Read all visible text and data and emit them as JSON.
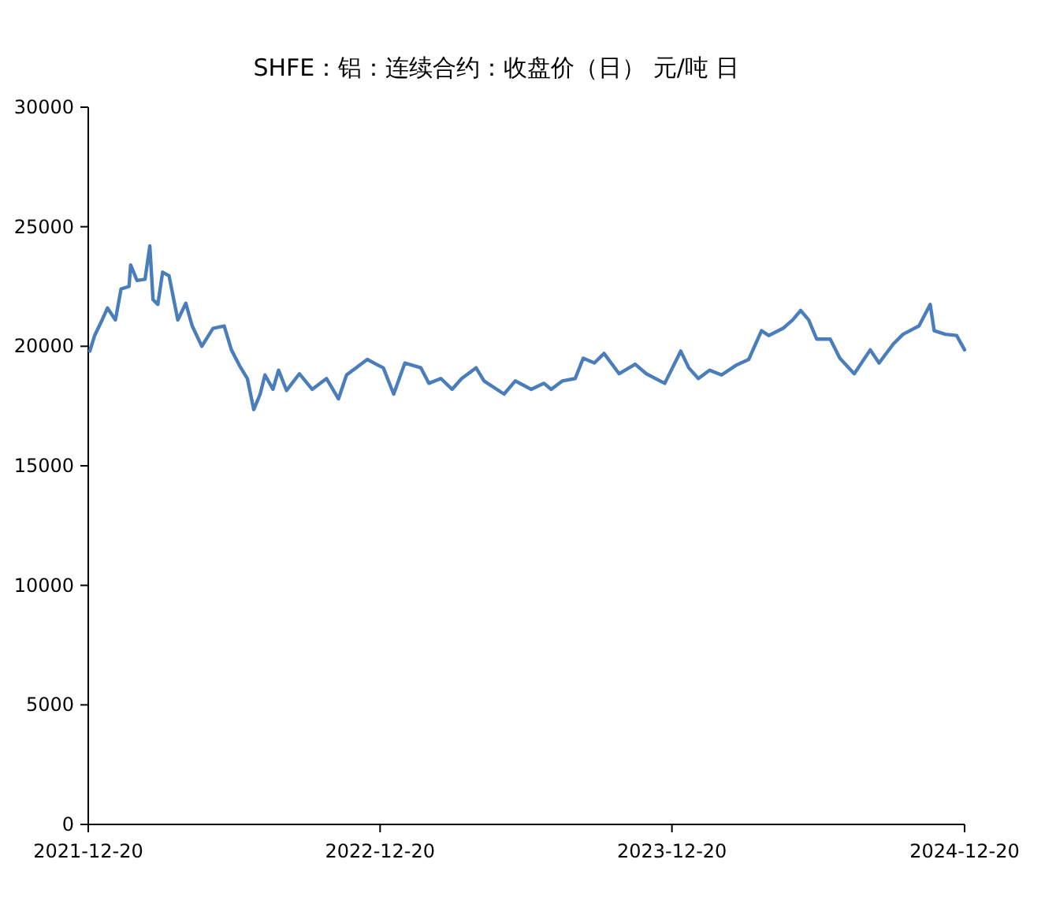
{
  "chart_data": {
    "type": "line",
    "title": "SHFE：铝：连续合约：收盘价（日）  元/吨 日",
    "xlim": [
      "2021-12-20",
      "2024-12-20"
    ],
    "xticks": [
      "2021-12-20",
      "2022-12-20",
      "2023-12-20",
      "2024-12-20"
    ],
    "ylim": [
      0,
      30000
    ],
    "yticks": [
      0,
      5000,
      10000,
      15000,
      20000,
      25000,
      30000
    ],
    "x": [
      "2021-12-22",
      "2021-12-28",
      "2022-01-07",
      "2022-01-13",
      "2022-01-23",
      "2022-01-30",
      "2022-02-09",
      "2022-02-11",
      "2022-02-19",
      "2022-03-01",
      "2022-03-07",
      "2022-03-11",
      "2022-03-17",
      "2022-03-23",
      "2022-03-31",
      "2022-04-11",
      "2022-04-21",
      "2022-04-29",
      "2022-05-11",
      "2022-05-25",
      "2022-06-08",
      "2022-06-17",
      "2022-06-27",
      "2022-07-07",
      "2022-07-15",
      "2022-07-23",
      "2022-07-29",
      "2022-08-08",
      "2022-08-15",
      "2022-08-25",
      "2022-09-10",
      "2022-09-26",
      "2022-10-14",
      "2022-10-29",
      "2022-11-08",
      "2022-12-04",
      "2022-12-18",
      "2022-12-24",
      "2023-01-06",
      "2023-01-20",
      "2023-02-09",
      "2023-02-19",
      "2023-03-06",
      "2023-03-20",
      "2023-04-01",
      "2023-04-19",
      "2023-04-29",
      "2023-05-24",
      "2023-06-07",
      "2023-06-27",
      "2023-07-13",
      "2023-07-22",
      "2023-08-05",
      "2023-08-21",
      "2023-08-31",
      "2023-09-14",
      "2023-09-26",
      "2023-10-15",
      "2023-11-04",
      "2023-11-18",
      "2023-12-11",
      "2023-12-31",
      "2024-01-10",
      "2024-01-22",
      "2024-02-05",
      "2024-02-20",
      "2024-03-09",
      "2024-03-25",
      "2024-04-10",
      "2024-04-19",
      "2024-05-07",
      "2024-05-19",
      "2024-05-29",
      "2024-06-08",
      "2024-06-18",
      "2024-07-05",
      "2024-07-17",
      "2024-08-04",
      "2024-08-24",
      "2024-09-04",
      "2024-09-22",
      "2024-10-04",
      "2024-10-24",
      "2024-11-07",
      "2024-11-12",
      "2024-11-26",
      "2024-12-10",
      "2024-12-20"
    ],
    "series": [
      {
        "color": "#4a7ebb",
        "values": [
          19800,
          20450,
          21150,
          21600,
          21100,
          22400,
          22500,
          23400,
          22750,
          22800,
          24200,
          21950,
          21750,
          23100,
          22950,
          21100,
          21800,
          20850,
          20000,
          20750,
          20850,
          19850,
          19200,
          18650,
          17350,
          18000,
          18800,
          18200,
          19000,
          18150,
          18850,
          18200,
          18650,
          17800,
          18800,
          19450,
          19200,
          19100,
          18000,
          19300,
          19100,
          18450,
          18650,
          18200,
          18650,
          19100,
          18550,
          18000,
          18550,
          18200,
          18450,
          18200,
          18550,
          18650,
          19500,
          19300,
          19700,
          18850,
          19250,
          18850,
          18450,
          19800,
          19100,
          18650,
          19000,
          18800,
          19200,
          19450,
          20650,
          20450,
          20750,
          21100,
          21500,
          21100,
          20300,
          20300,
          19500,
          18850,
          19850,
          19300,
          20100,
          20500,
          20850,
          21750,
          20650,
          20500,
          20450,
          19850
        ]
      }
    ]
  }
}
